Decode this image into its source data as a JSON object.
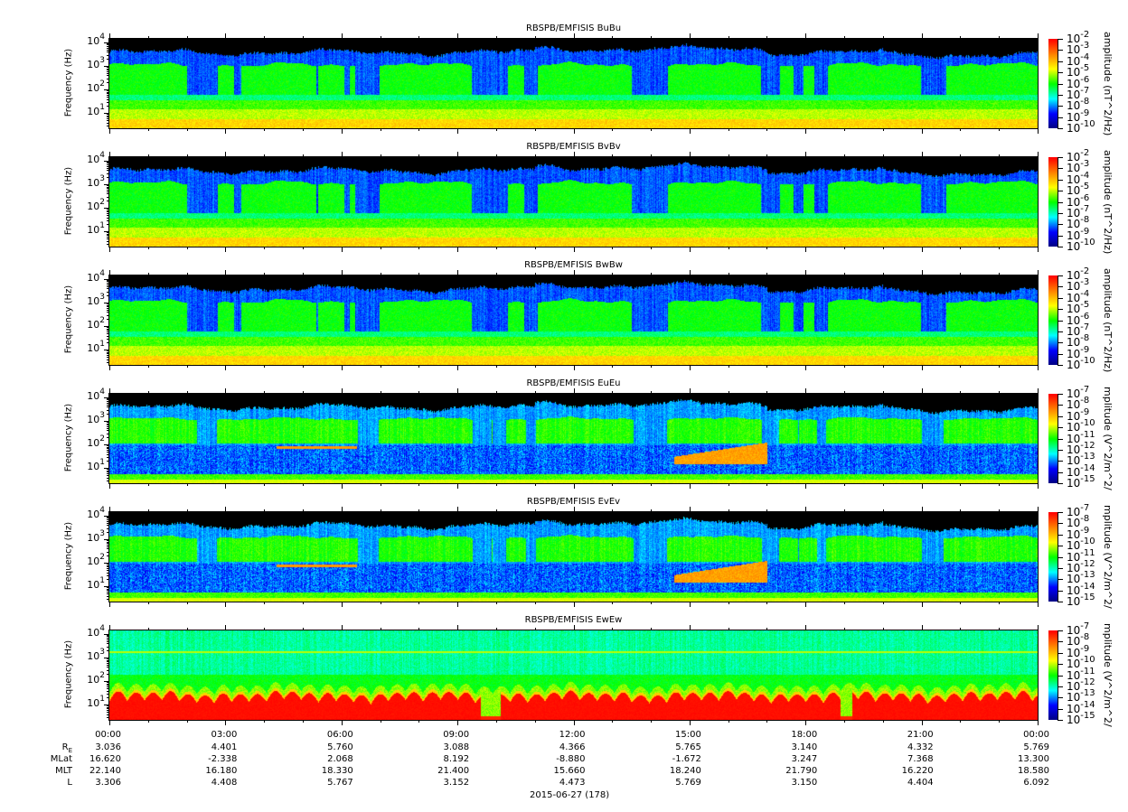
{
  "chart_data": [
    {
      "type": "heatmap",
      "title": "RBSPB/EMFISIS  BuBu",
      "ylabel": "Frequency (Hz)",
      "yscale": "log",
      "y_tick_exponents": [
        "1",
        "2",
        "3",
        "4"
      ],
      "colorbar": {
        "label": "amplitude (nT^2/Hz)",
        "scale": "log",
        "exponents": [
          "-2",
          "-3",
          "-4",
          "-5",
          "-6",
          "-7",
          "-8",
          "-9",
          "-10"
        ]
      },
      "kind": "B"
    },
    {
      "type": "heatmap",
      "title": "RBSPB/EMFISIS  BvBv",
      "ylabel": "Frequency (Hz)",
      "yscale": "log",
      "y_tick_exponents": [
        "1",
        "2",
        "3",
        "4"
      ],
      "colorbar": {
        "label": "amplitude (nT^2/Hz)",
        "scale": "log",
        "exponents": [
          "-2",
          "-3",
          "-4",
          "-5",
          "-6",
          "-7",
          "-8",
          "-9",
          "-10"
        ]
      },
      "kind": "B"
    },
    {
      "type": "heatmap",
      "title": "RBSPB/EMFISIS  BwBw",
      "ylabel": "Frequency (Hz)",
      "yscale": "log",
      "y_tick_exponents": [
        "1",
        "2",
        "3",
        "4"
      ],
      "colorbar": {
        "label": "amplitude (nT^2/Hz)",
        "scale": "log",
        "exponents": [
          "-2",
          "-3",
          "-4",
          "-5",
          "-6",
          "-7",
          "-8",
          "-9",
          "-10"
        ]
      },
      "kind": "B"
    },
    {
      "type": "heatmap",
      "title": "RBSPB/EMFISIS  EuEu",
      "ylabel": "Frequency (Hz)",
      "yscale": "log",
      "y_tick_exponents": [
        "1",
        "2",
        "3",
        "4"
      ],
      "colorbar": {
        "label": "mplitude (V^2/m^2/H",
        "scale": "log",
        "exponents": [
          "-7",
          "-8",
          "-9",
          "-10",
          "-11",
          "-12",
          "-13",
          "-14",
          "-15"
        ]
      },
      "kind": "E"
    },
    {
      "type": "heatmap",
      "title": "RBSPB/EMFISIS  EvEv",
      "ylabel": "Frequency (Hz)",
      "yscale": "log",
      "y_tick_exponents": [
        "1",
        "2",
        "3",
        "4"
      ],
      "colorbar": {
        "label": "mplitude (V^2/m^2/H",
        "scale": "log",
        "exponents": [
          "-7",
          "-8",
          "-9",
          "-10",
          "-11",
          "-12",
          "-13",
          "-14",
          "-15"
        ]
      },
      "kind": "E"
    },
    {
      "type": "heatmap",
      "title": "RBSPB/EMFISIS  EwEw",
      "ylabel": "Frequency (Hz)",
      "yscale": "log",
      "y_tick_exponents": [
        "1",
        "2",
        "3",
        "4"
      ],
      "colorbar": {
        "label": "mplitude (V^2/m^2/H",
        "scale": "log",
        "exponents": [
          "-7",
          "-8",
          "-9",
          "-10",
          "-11",
          "-12",
          "-13",
          "-14",
          "-15"
        ]
      },
      "kind": "Ew"
    }
  ],
  "x_axis": {
    "ticks": [
      "00:00",
      "03:00",
      "06:00",
      "09:00",
      "12:00",
      "15:00",
      "18:00",
      "21:00",
      "00:00"
    ],
    "date_label": "2015-06-27 (178)",
    "ephemeris": [
      {
        "label": "R",
        "sub": "E",
        "values": [
          "3.036",
          "4.401",
          "5.760",
          "3.088",
          "4.366",
          "5.765",
          "3.140",
          "4.332",
          "5.769"
        ]
      },
      {
        "label": "MLat",
        "values": [
          "16.620",
          "-2.338",
          "2.068",
          "8.192",
          "-8.880",
          "-1.672",
          "3.247",
          "7.368",
          "13.300"
        ]
      },
      {
        "label": "MLT",
        "values": [
          "22.140",
          "16.180",
          "18.330",
          "21.400",
          "15.660",
          "18.240",
          "21.790",
          "16.220",
          "18.580"
        ]
      },
      {
        "label": "L",
        "values": [
          "3.306",
          "4.408",
          "5.767",
          "3.152",
          "4.473",
          "5.769",
          "3.150",
          "4.404",
          "6.092"
        ]
      }
    ]
  },
  "colormap": [
    "#00007f",
    "#0000ff",
    "#00ffff",
    "#00ff00",
    "#ffff00",
    "#ff8000",
    "#ff0000"
  ]
}
